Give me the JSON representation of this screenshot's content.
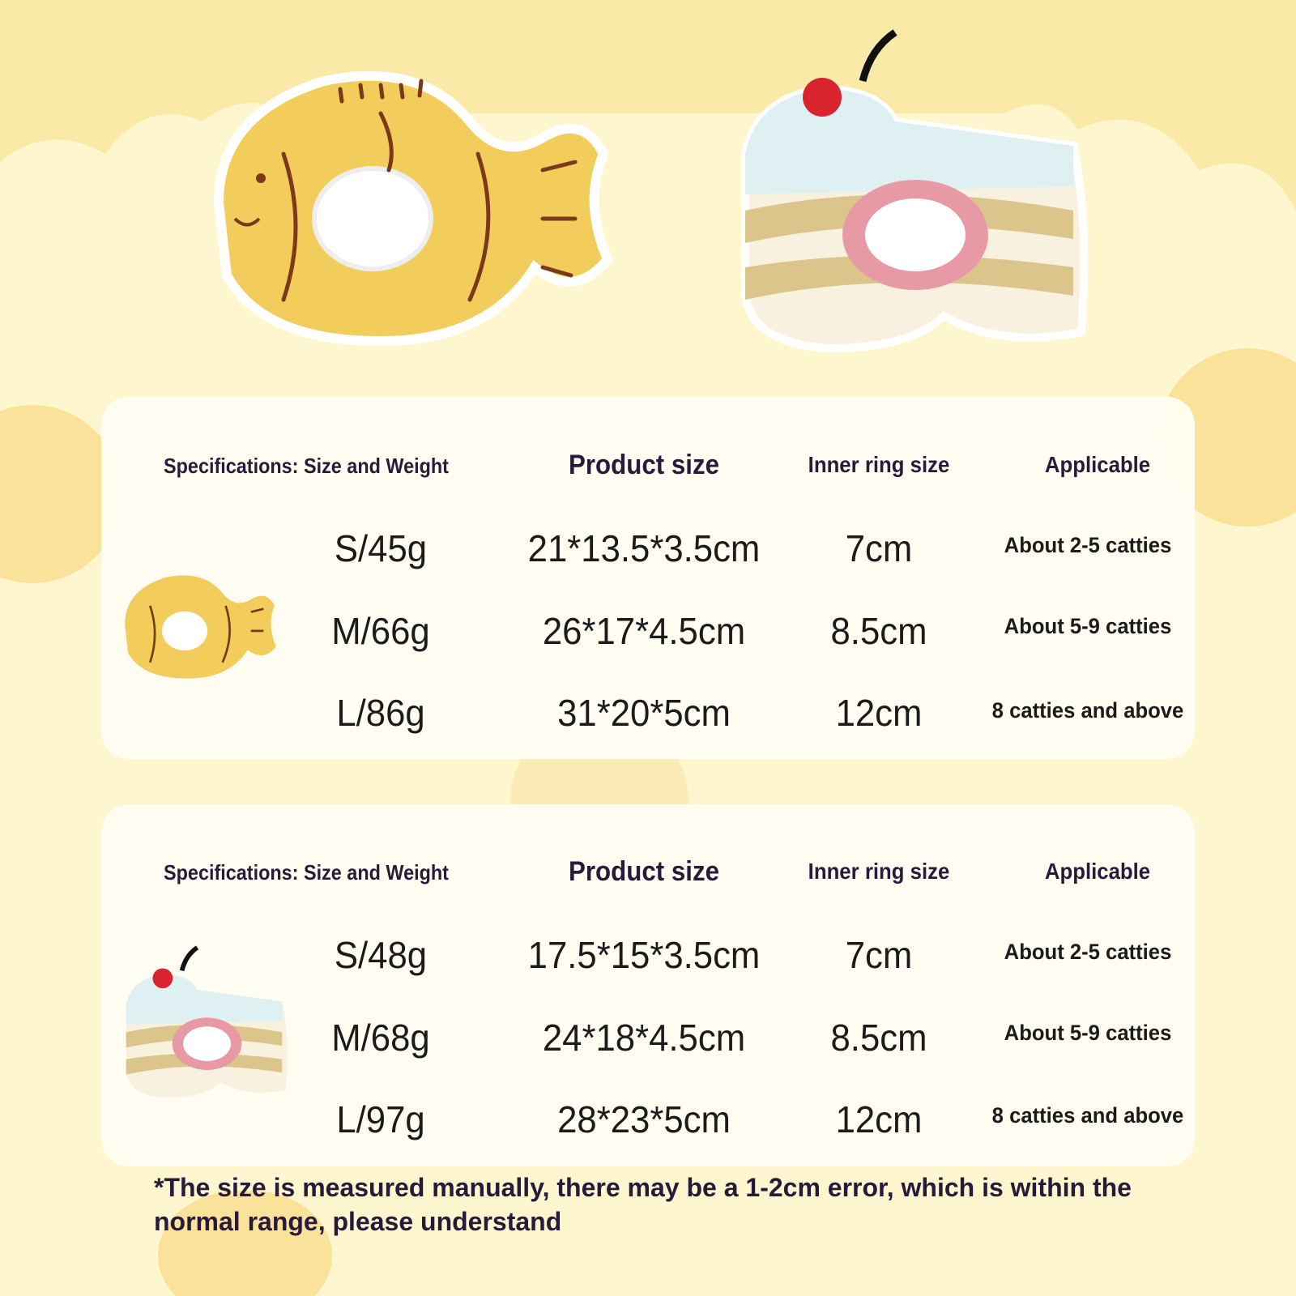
{
  "colors": {
    "background": "#fdf6cf",
    "cloud": "#fbe7a4",
    "card": "#fffdf4",
    "text": "#2a1a3a",
    "fish": "#f3cd5c",
    "cake_stripe": "#dcc58a",
    "cherry": "#d9232f",
    "ring_pink": "#e79aa6"
  },
  "products": [
    {
      "image": "taiyaki-fish-collar",
      "headers": {
        "spec": "Specifications: Size and Weight",
        "product_size": "Product size",
        "inner_ring": "Inner ring size",
        "applicable": "Applicable"
      },
      "rows": [
        {
          "size": "S/45g",
          "product_size": "21*13.5*3.5cm",
          "inner_ring": "7cm",
          "applicable": "About 2-5 catties"
        },
        {
          "size": "M/66g",
          "product_size": "26*17*4.5cm",
          "inner_ring": "8.5cm",
          "applicable": "About 5-9 catties"
        },
        {
          "size": "L/86g",
          "product_size": "31*20*5cm",
          "inner_ring": "12cm",
          "applicable": "8 catties and above"
        }
      ]
    },
    {
      "image": "cherry-cake-collar",
      "headers": {
        "spec": "Specifications: Size and Weight",
        "product_size": "Product size",
        "inner_ring": "Inner ring size",
        "applicable": "Applicable"
      },
      "rows": [
        {
          "size": "S/48g",
          "product_size": "17.5*15*3.5cm",
          "inner_ring": "7cm",
          "applicable": "About 2-5 catties"
        },
        {
          "size": "M/68g",
          "product_size": "24*18*4.5cm",
          "inner_ring": "8.5cm",
          "applicable": "About 5-9 catties"
        },
        {
          "size": "L/97g",
          "product_size": "28*23*5cm",
          "inner_ring": "12cm",
          "applicable": "8 catties and above"
        }
      ]
    }
  ],
  "note": "*The size is measured manually, there may be a 1-2cm error, which is within the normal range, please understand"
}
